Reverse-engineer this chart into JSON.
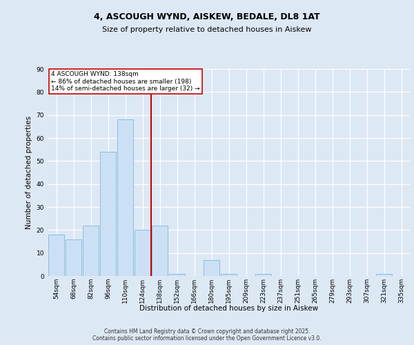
{
  "title1": "4, ASCOUGH WYND, AISKEW, BEDALE, DL8 1AT",
  "title2": "Size of property relative to detached houses in Aiskew",
  "xlabel": "Distribution of detached houses by size in Aiskew",
  "ylabel": "Number of detached properties",
  "categories": [
    "54sqm",
    "68sqm",
    "82sqm",
    "96sqm",
    "110sqm",
    "124sqm",
    "138sqm",
    "152sqm",
    "166sqm",
    "180sqm",
    "195sqm",
    "209sqm",
    "223sqm",
    "237sqm",
    "251sqm",
    "265sqm",
    "279sqm",
    "293sqm",
    "307sqm",
    "321sqm",
    "335sqm"
  ],
  "values": [
    18,
    16,
    22,
    54,
    68,
    20,
    22,
    1,
    0,
    7,
    1,
    0,
    1,
    0,
    0,
    0,
    0,
    0,
    0,
    1,
    0
  ],
  "bar_color": "#cce0f5",
  "bar_edge_color": "#7ab8d8",
  "vline_index": 6,
  "vline_color": "#cc0000",
  "annotation_title": "4 ASCOUGH WYND: 138sqm",
  "annotation_line1": "← 86% of detached houses are smaller (198)",
  "annotation_line2": "14% of semi-detached houses are larger (32) →",
  "annotation_box_color": "#cc0000",
  "ylim": [
    0,
    90
  ],
  "yticks": [
    0,
    10,
    20,
    30,
    40,
    50,
    60,
    70,
    80,
    90
  ],
  "footer": "Contains HM Land Registry data © Crown copyright and database right 2025.\nContains public sector information licensed under the Open Government Licence v3.0.",
  "bg_color": "#dde8f5",
  "plot_bg_color": "#dde8f5",
  "title1_fontsize": 9,
  "title2_fontsize": 8,
  "ylabel_fontsize": 7.5,
  "xlabel_fontsize": 7.5,
  "tick_fontsize": 6.5,
  "annot_fontsize": 6.5,
  "footer_fontsize": 5.5
}
